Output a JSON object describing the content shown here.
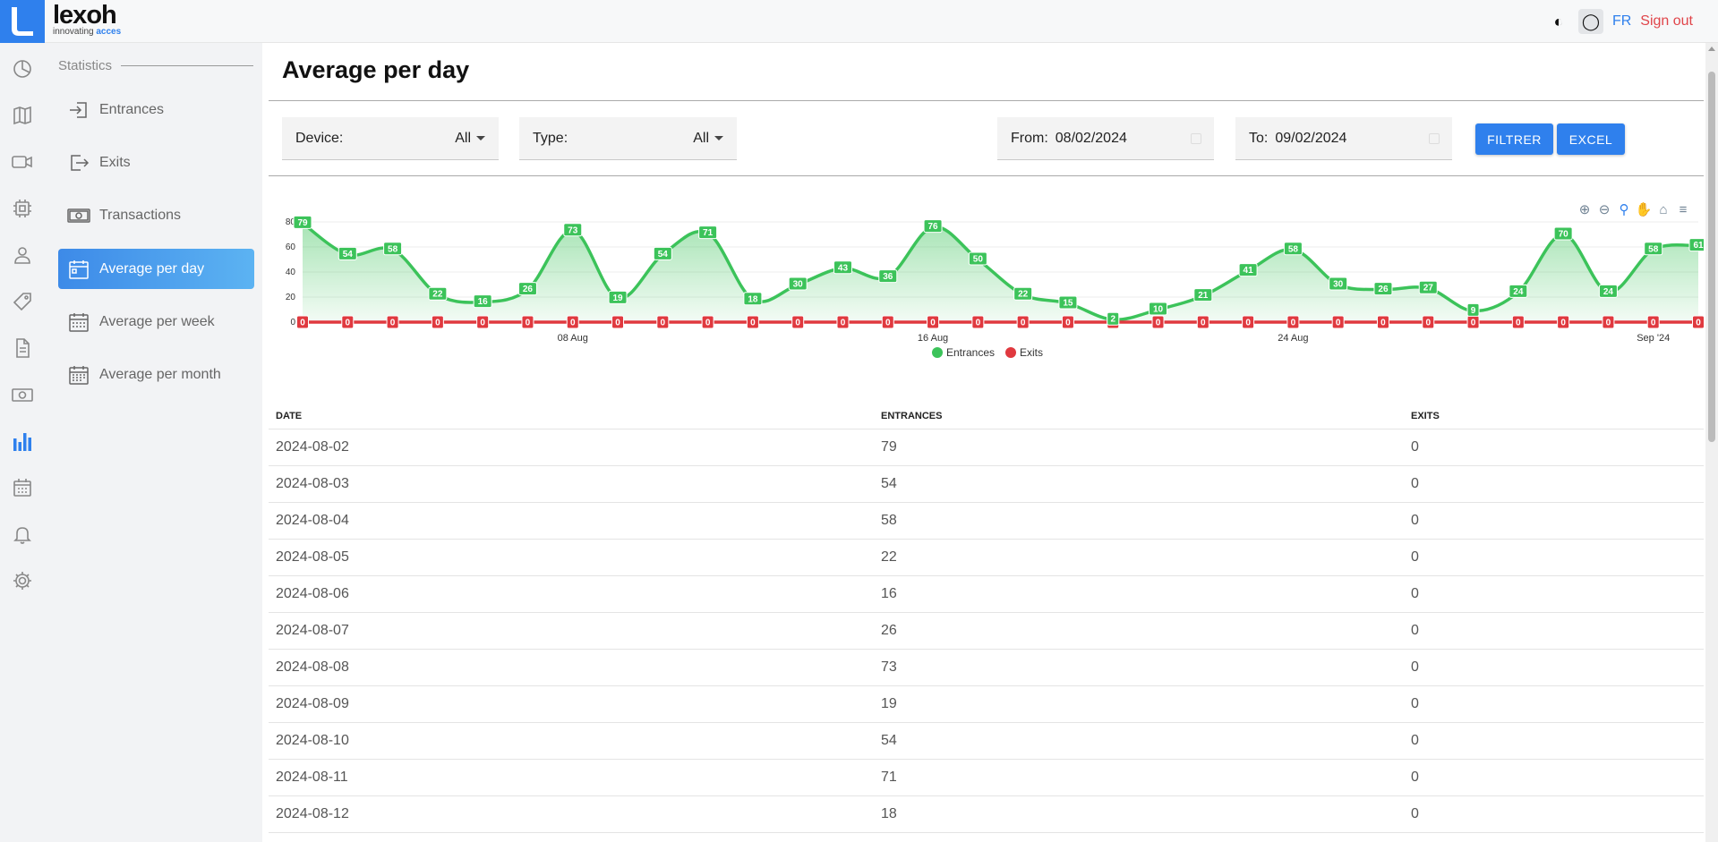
{
  "app": {
    "logo_name": "lexoh",
    "tagline_prefix": "innovating ",
    "tagline_highlight": "acces"
  },
  "header": {
    "contrast_icon": "◐",
    "circle_icon": "◯",
    "lang": "FR",
    "signout": "Sign out"
  },
  "rail": [
    "dashboard-icon",
    "map-icon",
    "camera-icon",
    "chip-icon",
    "user-icon",
    "tag-icon",
    "document-icon",
    "money-icon",
    "bar-chart-icon",
    "calendar-icon",
    "bell-icon",
    "gear-icon"
  ],
  "sidebar": {
    "section": "Statistics",
    "items": [
      {
        "label": "Entrances",
        "icon": "enter-icon"
      },
      {
        "label": "Exits",
        "icon": "exit-icon"
      },
      {
        "label": "Transactions",
        "icon": "money-icon"
      },
      {
        "label": "Average per day",
        "icon": "calendar-day-icon",
        "active": true
      },
      {
        "label": "Average per week",
        "icon": "calendar-week-icon"
      },
      {
        "label": "Average per month",
        "icon": "calendar-month-icon"
      }
    ]
  },
  "page": {
    "title": "Average per day"
  },
  "filters": {
    "device_label": "Device:",
    "device_value": "All",
    "type_label": "Type:",
    "type_value": "All",
    "from_label": "From:",
    "from_value": "08/02/2024",
    "to_label": "To:",
    "to_value": "09/02/2024",
    "filter_button": "FILTRER",
    "excel_button": "EXCEL"
  },
  "colors": {
    "accent": "#2f80ed",
    "entrances": "#3cc35a",
    "exits": "#e0393f"
  },
  "chart_data": {
    "type": "area",
    "x": [
      "2024-08-02",
      "2024-08-03",
      "2024-08-04",
      "2024-08-05",
      "2024-08-06",
      "2024-08-07",
      "2024-08-08",
      "2024-08-09",
      "2024-08-10",
      "2024-08-11",
      "2024-08-12",
      "2024-08-13",
      "2024-08-14",
      "2024-08-15",
      "2024-08-16",
      "2024-08-17",
      "2024-08-18",
      "2024-08-19",
      "2024-08-20",
      "2024-08-21",
      "2024-08-22",
      "2024-08-23",
      "2024-08-24",
      "2024-08-25",
      "2024-08-26",
      "2024-08-27",
      "2024-08-28",
      "2024-08-29",
      "2024-08-30",
      "2024-08-31",
      "2024-09-01",
      "2024-09-02"
    ],
    "x_ticks": [
      {
        "date": "2024-08-08",
        "label": "08 Aug"
      },
      {
        "date": "2024-08-16",
        "label": "16 Aug"
      },
      {
        "date": "2024-08-24",
        "label": "24 Aug"
      },
      {
        "date": "2024-09-01",
        "label": "Sep '24"
      }
    ],
    "y_ticks": [
      0,
      20,
      40,
      60,
      80
    ],
    "ylim": [
      0,
      80
    ],
    "series": [
      {
        "name": "Entrances",
        "color": "#3cc35a",
        "values": [
          79,
          54,
          58,
          22,
          16,
          26,
          73,
          19,
          54,
          71,
          18,
          30,
          43,
          36,
          76,
          50,
          22,
          15,
          2,
          10,
          21,
          41,
          58,
          30,
          26,
          27,
          9,
          24,
          70,
          24,
          58,
          61
        ]
      },
      {
        "name": "Exits",
        "color": "#e0393f",
        "values": [
          0,
          0,
          0,
          0,
          0,
          0,
          0,
          0,
          0,
          0,
          0,
          0,
          0,
          0,
          0,
          0,
          0,
          0,
          0,
          0,
          0,
          0,
          0,
          0,
          0,
          0,
          0,
          0,
          0,
          0,
          0,
          0
        ]
      }
    ],
    "legend_position": "bottom-center",
    "grid": true
  },
  "table": {
    "headers": [
      "DATE",
      "ENTRANCES",
      "EXITS"
    ],
    "rows": [
      [
        "2024-08-02",
        "79",
        "0"
      ],
      [
        "2024-08-03",
        "54",
        "0"
      ],
      [
        "2024-08-04",
        "58",
        "0"
      ],
      [
        "2024-08-05",
        "22",
        "0"
      ],
      [
        "2024-08-06",
        "16",
        "0"
      ],
      [
        "2024-08-07",
        "26",
        "0"
      ],
      [
        "2024-08-08",
        "73",
        "0"
      ],
      [
        "2024-08-09",
        "19",
        "0"
      ],
      [
        "2024-08-10",
        "54",
        "0"
      ],
      [
        "2024-08-11",
        "71",
        "0"
      ],
      [
        "2024-08-12",
        "18",
        "0"
      ]
    ]
  }
}
